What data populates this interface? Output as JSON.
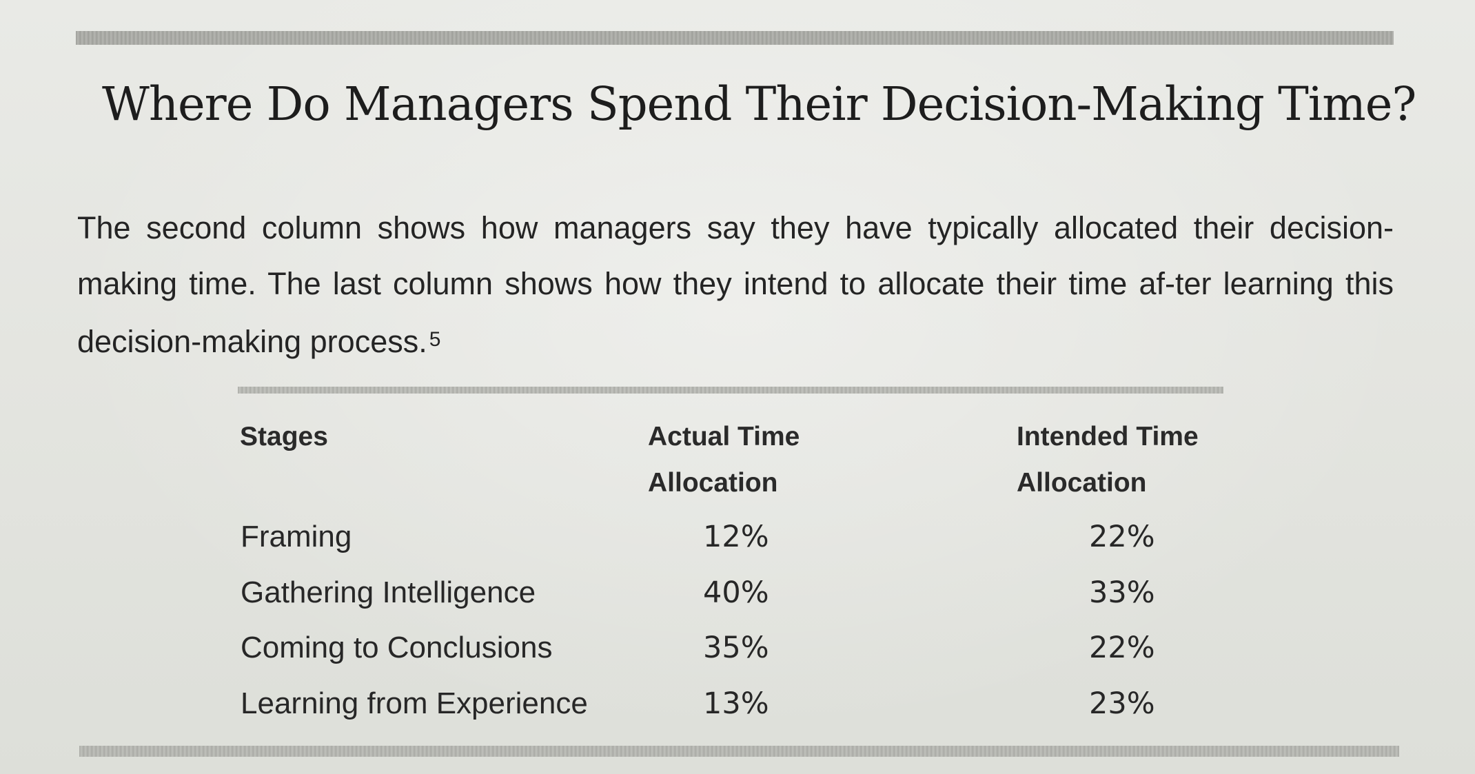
{
  "title": "Where Do Managers Spend Their Decision-Making Time?",
  "intro": {
    "text": "The second column shows how managers say they have typically allocated their decision-making time. The last column shows how they intend to allocate their time af-ter learning this decision-making process.",
    "footnote": "5"
  },
  "table": {
    "headers": {
      "stages": "Stages",
      "actual_line1": "Actual Time",
      "actual_line2": "Allocation",
      "intended_line1": "Intended Time",
      "intended_line2": "Allocation"
    },
    "rows": [
      {
        "stage": "Framing",
        "actual": "12%",
        "intended": "22%"
      },
      {
        "stage": "Gathering Intelligence",
        "actual": "40%",
        "intended": "33%"
      },
      {
        "stage": "Coming to Conclusions",
        "actual": "35%",
        "intended": "22%"
      },
      {
        "stage": "Learning from Experience",
        "actual": "13%",
        "intended": "23%"
      }
    ]
  }
}
